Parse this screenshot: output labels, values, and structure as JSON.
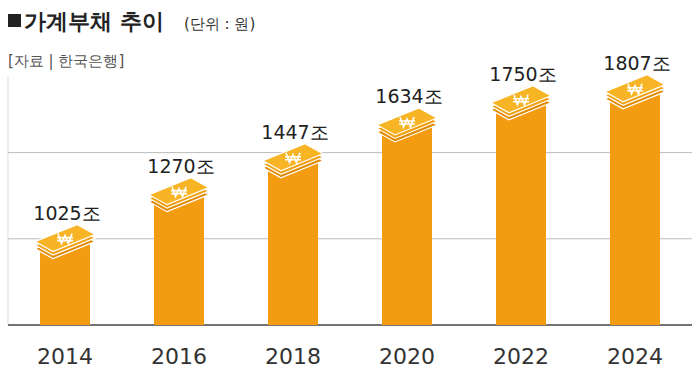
{
  "chart_data": {
    "type": "bar",
    "title": "가계부채 추이",
    "subtitle": "(단위 : 원)",
    "source": "[자료 | 한국은행]",
    "categories": [
      "2014",
      "2016",
      "2018",
      "2020",
      "2022",
      "2024"
    ],
    "values": [
      1025,
      1270,
      1447,
      1634,
      1750,
      1807
    ],
    "value_labels": [
      "1025조",
      "1270조",
      "1447조",
      "1634조",
      "1750조",
      "1807조"
    ],
    "color": "#f39c12",
    "ylim": [
      600,
      1900
    ],
    "yticks": [
      600,
      1050,
      1500
    ],
    "grid": true,
    "data_labels": true,
    "tick_labels": "x"
  }
}
